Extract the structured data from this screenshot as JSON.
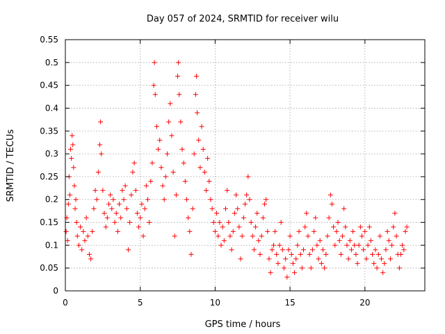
{
  "chart_data": {
    "type": "scatter",
    "title": "Day 057 of 2024, SRMTID for receiver wilu",
    "xlabel": "GPS time / hours",
    "ylabel": "SRMTID / TECUs",
    "xlim": [
      0,
      24
    ],
    "ylim": [
      0,
      0.55
    ],
    "xticks": [
      0,
      5,
      10,
      15,
      20
    ],
    "xtick_labels": [
      "0",
      "5",
      "10",
      "15",
      "20"
    ],
    "yticks": [
      0,
      0.05,
      0.1,
      0.15,
      0.2,
      0.25,
      0.3,
      0.35,
      0.4,
      0.45,
      0.5,
      0.55
    ],
    "ytick_labels": [
      "0",
      "0.05",
      "0.1",
      "0.15",
      "0.2",
      "0.25",
      "0.3",
      "0.35",
      "0.4",
      "0.45",
      "0.5",
      "0.55"
    ],
    "grid": true,
    "marker": "+",
    "marker_color": "#ff0000",
    "series": [
      {
        "name": "SRMTID",
        "points": [
          [
            0.05,
            0.13
          ],
          [
            0.1,
            0.16
          ],
          [
            0.15,
            0.11
          ],
          [
            0.2,
            0.19
          ],
          [
            0.25,
            0.25
          ],
          [
            0.3,
            0.21
          ],
          [
            0.35,
            0.31
          ],
          [
            0.4,
            0.29
          ],
          [
            0.45,
            0.34
          ],
          [
            0.5,
            0.32
          ],
          [
            0.55,
            0.27
          ],
          [
            0.6,
            0.23
          ],
          [
            0.65,
            0.18
          ],
          [
            0.7,
            0.2
          ],
          [
            0.75,
            0.15
          ],
          [
            0.8,
            0.12
          ],
          [
            0.9,
            0.1
          ],
          [
            1.0,
            0.14
          ],
          [
            1.1,
            0.09
          ],
          [
            1.2,
            0.13
          ],
          [
            1.3,
            0.11
          ],
          [
            1.4,
            0.16
          ],
          [
            1.5,
            0.12
          ],
          [
            1.6,
            0.08
          ],
          [
            1.7,
            0.07
          ],
          [
            1.8,
            0.13
          ],
          [
            1.9,
            0.18
          ],
          [
            2.0,
            0.22
          ],
          [
            2.1,
            0.2
          ],
          [
            2.2,
            0.26
          ],
          [
            2.3,
            0.32
          ],
          [
            2.35,
            0.37
          ],
          [
            2.4,
            0.3
          ],
          [
            2.5,
            0.22
          ],
          [
            2.6,
            0.17
          ],
          [
            2.7,
            0.14
          ],
          [
            2.8,
            0.16
          ],
          [
            2.9,
            0.19
          ],
          [
            3.0,
            0.21
          ],
          [
            3.1,
            0.18
          ],
          [
            3.2,
            0.2
          ],
          [
            3.3,
            0.15
          ],
          [
            3.4,
            0.17
          ],
          [
            3.5,
            0.13
          ],
          [
            3.6,
            0.19
          ],
          [
            3.7,
            0.16
          ],
          [
            3.8,
            0.22
          ],
          [
            3.9,
            0.2
          ],
          [
            4.0,
            0.23
          ],
          [
            4.1,
            0.18
          ],
          [
            4.2,
            0.09
          ],
          [
            4.3,
            0.15
          ],
          [
            4.4,
            0.21
          ],
          [
            4.5,
            0.26
          ],
          [
            4.6,
            0.28
          ],
          [
            4.7,
            0.22
          ],
          [
            4.8,
            0.17
          ],
          [
            4.9,
            0.14
          ],
          [
            5.0,
            0.16
          ],
          [
            5.1,
            0.19
          ],
          [
            5.2,
            0.12
          ],
          [
            5.3,
            0.18
          ],
          [
            5.4,
            0.23
          ],
          [
            5.5,
            0.2
          ],
          [
            5.6,
            0.15
          ],
          [
            5.7,
            0.24
          ],
          [
            5.8,
            0.28
          ],
          [
            5.9,
            0.45
          ],
          [
            5.95,
            0.5
          ],
          [
            6.0,
            0.43
          ],
          [
            6.1,
            0.36
          ],
          [
            6.2,
            0.31
          ],
          [
            6.3,
            0.33
          ],
          [
            6.4,
            0.27
          ],
          [
            6.5,
            0.23
          ],
          [
            6.6,
            0.2
          ],
          [
            6.7,
            0.25
          ],
          [
            6.8,
            0.3
          ],
          [
            6.9,
            0.37
          ],
          [
            7.0,
            0.41
          ],
          [
            7.1,
            0.34
          ],
          [
            7.2,
            0.26
          ],
          [
            7.3,
            0.12
          ],
          [
            7.4,
            0.21
          ],
          [
            7.5,
            0.47
          ],
          [
            7.55,
            0.5
          ],
          [
            7.6,
            0.43
          ],
          [
            7.7,
            0.37
          ],
          [
            7.8,
            0.31
          ],
          [
            7.9,
            0.28
          ],
          [
            8.0,
            0.24
          ],
          [
            8.1,
            0.2
          ],
          [
            8.2,
            0.16
          ],
          [
            8.3,
            0.13
          ],
          [
            8.4,
            0.08
          ],
          [
            8.5,
            0.18
          ],
          [
            8.6,
            0.3
          ],
          [
            8.7,
            0.43
          ],
          [
            8.75,
            0.47
          ],
          [
            8.8,
            0.39
          ],
          [
            8.9,
            0.33
          ],
          [
            9.0,
            0.27
          ],
          [
            9.1,
            0.36
          ],
          [
            9.2,
            0.31
          ],
          [
            9.3,
            0.26
          ],
          [
            9.4,
            0.22
          ],
          [
            9.5,
            0.29
          ],
          [
            9.6,
            0.24
          ],
          [
            9.7,
            0.2
          ],
          [
            9.8,
            0.18
          ],
          [
            9.9,
            0.15
          ],
          [
            10.0,
            0.13
          ],
          [
            10.1,
            0.17
          ],
          [
            10.2,
            0.12
          ],
          [
            10.3,
            0.15
          ],
          [
            10.4,
            0.1
          ],
          [
            10.5,
            0.14
          ],
          [
            10.6,
            0.11
          ],
          [
            10.7,
            0.18
          ],
          [
            10.8,
            0.22
          ],
          [
            10.9,
            0.15
          ],
          [
            11.0,
            0.12
          ],
          [
            11.1,
            0.09
          ],
          [
            11.2,
            0.13
          ],
          [
            11.3,
            0.17
          ],
          [
            11.4,
            0.21
          ],
          [
            11.5,
            0.18
          ],
          [
            11.6,
            0.14
          ],
          [
            11.7,
            0.07
          ],
          [
            11.8,
            0.12
          ],
          [
            11.9,
            0.16
          ],
          [
            12.0,
            0.19
          ],
          [
            12.1,
            0.21
          ],
          [
            12.2,
            0.25
          ],
          [
            12.3,
            0.2
          ],
          [
            12.4,
            0.15
          ],
          [
            12.5,
            0.12
          ],
          [
            12.6,
            0.09
          ],
          [
            12.7,
            0.14
          ],
          [
            12.8,
            0.17
          ],
          [
            12.9,
            0.11
          ],
          [
            13.0,
            0.08
          ],
          [
            13.1,
            0.12
          ],
          [
            13.2,
            0.16
          ],
          [
            13.3,
            0.19
          ],
          [
            13.4,
            0.2
          ],
          [
            13.5,
            0.13
          ],
          [
            13.6,
            0.07
          ],
          [
            13.7,
            0.04
          ],
          [
            13.8,
            0.09
          ],
          [
            13.9,
            0.1
          ],
          [
            14.0,
            0.13
          ],
          [
            14.1,
            0.08
          ],
          [
            14.2,
            0.06
          ],
          [
            14.3,
            0.1
          ],
          [
            14.4,
            0.15
          ],
          [
            14.5,
            0.09
          ],
          [
            14.6,
            0.05
          ],
          [
            14.7,
            0.07
          ],
          [
            14.8,
            0.03
          ],
          [
            14.9,
            0.09
          ],
          [
            15.0,
            0.12
          ],
          [
            15.1,
            0.08
          ],
          [
            15.2,
            0.06
          ],
          [
            15.3,
            0.04
          ],
          [
            15.4,
            0.07
          ],
          [
            15.5,
            0.1
          ],
          [
            15.6,
            0.13
          ],
          [
            15.7,
            0.08
          ],
          [
            15.8,
            0.05
          ],
          [
            15.9,
            0.09
          ],
          [
            16.0,
            0.14
          ],
          [
            16.1,
            0.17
          ],
          [
            16.2,
            0.12
          ],
          [
            16.3,
            0.08
          ],
          [
            16.4,
            0.05
          ],
          [
            16.5,
            0.09
          ],
          [
            16.6,
            0.13
          ],
          [
            16.7,
            0.16
          ],
          [
            16.8,
            0.1
          ],
          [
            16.9,
            0.07
          ],
          [
            17.0,
            0.11
          ],
          [
            17.1,
            0.06
          ],
          [
            17.2,
            0.09
          ],
          [
            17.3,
            0.05
          ],
          [
            17.4,
            0.08
          ],
          [
            17.5,
            0.12
          ],
          [
            17.6,
            0.16
          ],
          [
            17.7,
            0.21
          ],
          [
            17.8,
            0.19
          ],
          [
            17.9,
            0.14
          ],
          [
            18.0,
            0.1
          ],
          [
            18.1,
            0.13
          ],
          [
            18.2,
            0.15
          ],
          [
            18.3,
            0.11
          ],
          [
            18.4,
            0.08
          ],
          [
            18.5,
            0.12
          ],
          [
            18.6,
            0.18
          ],
          [
            18.7,
            0.14
          ],
          [
            18.8,
            0.1
          ],
          [
            18.9,
            0.07
          ],
          [
            19.0,
            0.11
          ],
          [
            19.1,
            0.09
          ],
          [
            19.2,
            0.13
          ],
          [
            19.3,
            0.1
          ],
          [
            19.4,
            0.08
          ],
          [
            19.5,
            0.06
          ],
          [
            19.6,
            0.1
          ],
          [
            19.7,
            0.14
          ],
          [
            19.8,
            0.12
          ],
          [
            19.9,
            0.09
          ],
          [
            20.0,
            0.13
          ],
          [
            20.1,
            0.07
          ],
          [
            20.2,
            0.1
          ],
          [
            20.3,
            0.14
          ],
          [
            20.4,
            0.11
          ],
          [
            20.5,
            0.08
          ],
          [
            20.6,
            0.06
          ],
          [
            20.7,
            0.09
          ],
          [
            20.8,
            0.05
          ],
          [
            20.9,
            0.08
          ],
          [
            21.0,
            0.12
          ],
          [
            21.1,
            0.07
          ],
          [
            21.2,
            0.04
          ],
          [
            21.3,
            0.06
          ],
          [
            21.4,
            0.09
          ],
          [
            21.5,
            0.13
          ],
          [
            21.6,
            0.11
          ],
          [
            21.7,
            0.07
          ],
          [
            21.8,
            0.1
          ],
          [
            21.9,
            0.14
          ],
          [
            22.0,
            0.17
          ],
          [
            22.1,
            0.12
          ],
          [
            22.2,
            0.08
          ],
          [
            22.3,
            0.05
          ],
          [
            22.4,
            0.08
          ],
          [
            22.5,
            0.1
          ],
          [
            22.6,
            0.09
          ],
          [
            22.7,
            0.13
          ],
          [
            22.8,
            0.14
          ]
        ]
      }
    ]
  }
}
